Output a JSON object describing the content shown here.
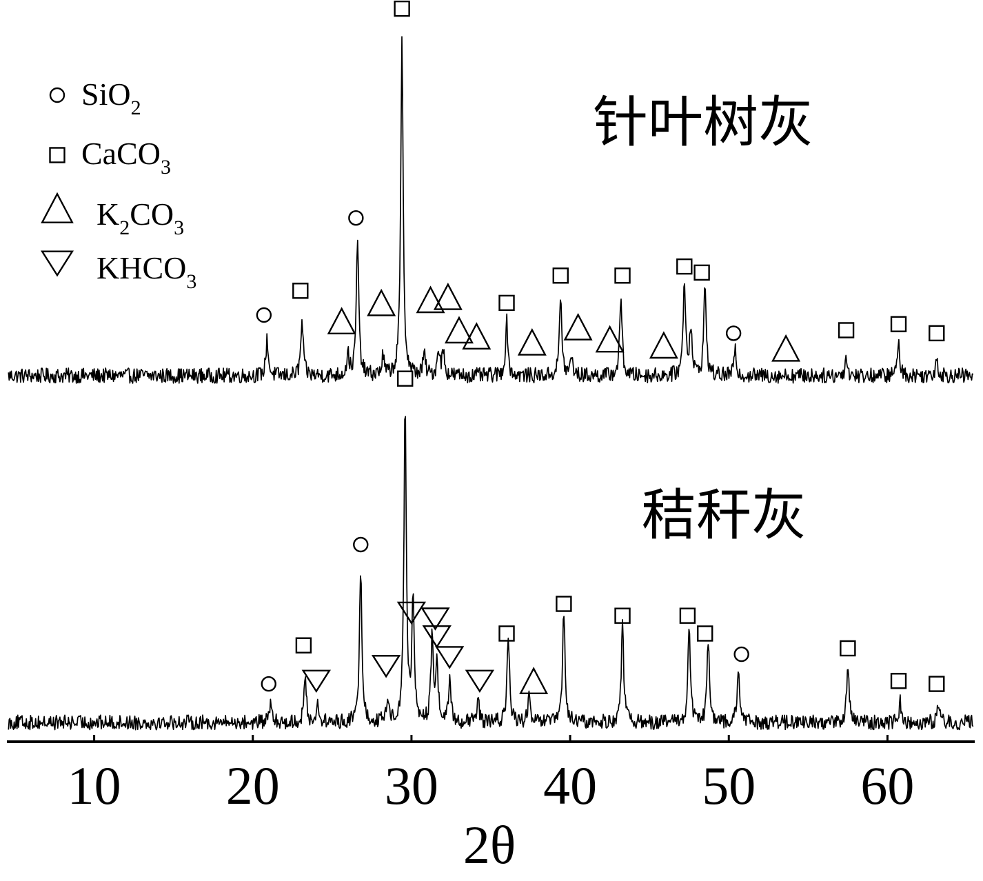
{
  "chart_data": {
    "type": "line",
    "xlabel": "2θ",
    "xlim": [
      4.5,
      65.5
    ],
    "ticks": [
      10,
      20,
      30,
      40,
      50,
      60
    ],
    "legend": [
      {
        "symbol": "circle",
        "parts": [
          {
            "t": "SiO",
            "sub": false
          },
          {
            "t": "2",
            "sub": true
          }
        ]
      },
      {
        "symbol": "square",
        "parts": [
          {
            "t": "CaCO",
            "sub": false
          },
          {
            "t": "3",
            "sub": true
          }
        ]
      },
      {
        "symbol": "triangle-up",
        "parts": [
          {
            "t": "K",
            "sub": false
          },
          {
            "t": "2",
            "sub": true
          },
          {
            "t": "CO",
            "sub": false
          },
          {
            "t": "3",
            "sub": true
          }
        ]
      },
      {
        "symbol": "triangle-down",
        "parts": [
          {
            "t": "KHCO",
            "sub": false
          },
          {
            "t": "3",
            "sub": true
          }
        ]
      }
    ],
    "series": [
      {
        "name": "针叶树灰",
        "label": "针叶树灰",
        "baseline": 0,
        "noise": 2.5,
        "peaks": [
          {
            "x": 20.9,
            "h": 12
          },
          {
            "x": 23.1,
            "h": 18
          },
          {
            "x": 26.0,
            "h": 7
          },
          {
            "x": 26.6,
            "h": 45
          },
          {
            "x": 28.2,
            "h": 6
          },
          {
            "x": 29.4,
            "h": 110
          },
          {
            "x": 30.8,
            "h": 7
          },
          {
            "x": 31.7,
            "h": 9
          },
          {
            "x": 32.0,
            "h": 8
          },
          {
            "x": 36.0,
            "h": 18
          },
          {
            "x": 39.4,
            "h": 26
          },
          {
            "x": 40.1,
            "h": 6
          },
          {
            "x": 43.2,
            "h": 26
          },
          {
            "x": 47.2,
            "h": 32
          },
          {
            "x": 47.6,
            "h": 16
          },
          {
            "x": 48.5,
            "h": 30
          },
          {
            "x": 50.4,
            "h": 8
          },
          {
            "x": 57.4,
            "h": 6
          },
          {
            "x": 60.7,
            "h": 11
          },
          {
            "x": 63.1,
            "h": 6
          }
        ],
        "markers": [
          {
            "x": 20.7,
            "y": 20,
            "symbol": "circle"
          },
          {
            "x": 23.0,
            "y": 28,
            "symbol": "square"
          },
          {
            "x": 25.6,
            "y": 18,
            "symbol": "triangle-up"
          },
          {
            "x": 26.5,
            "y": 52,
            "symbol": "circle"
          },
          {
            "x": 28.1,
            "y": 24,
            "symbol": "triangle-up"
          },
          {
            "x": 29.4,
            "y": 121,
            "symbol": "square"
          },
          {
            "x": 31.2,
            "y": 25,
            "symbol": "triangle-up"
          },
          {
            "x": 32.3,
            "y": 26,
            "symbol": "triangle-up"
          },
          {
            "x": 33.0,
            "y": 15,
            "symbol": "triangle-up"
          },
          {
            "x": 34.1,
            "y": 13,
            "symbol": "triangle-up"
          },
          {
            "x": 36.0,
            "y": 24,
            "symbol": "square"
          },
          {
            "x": 37.6,
            "y": 11,
            "symbol": "triangle-up"
          },
          {
            "x": 39.4,
            "y": 33,
            "symbol": "square"
          },
          {
            "x": 40.5,
            "y": 16,
            "symbol": "triangle-up"
          },
          {
            "x": 42.5,
            "y": 12,
            "symbol": "triangle-up"
          },
          {
            "x": 43.3,
            "y": 33,
            "symbol": "square"
          },
          {
            "x": 45.9,
            "y": 10,
            "symbol": "triangle-up"
          },
          {
            "x": 47.2,
            "y": 36,
            "symbol": "square"
          },
          {
            "x": 48.3,
            "y": 34,
            "symbol": "square"
          },
          {
            "x": 50.3,
            "y": 14,
            "symbol": "circle"
          },
          {
            "x": 53.6,
            "y": 9,
            "symbol": "triangle-up"
          },
          {
            "x": 57.4,
            "y": 15,
            "symbol": "square"
          },
          {
            "x": 60.7,
            "y": 17,
            "symbol": "square"
          },
          {
            "x": 63.1,
            "y": 14,
            "symbol": "square"
          }
        ]
      },
      {
        "name": "秸秆灰",
        "label": "秸秆灰",
        "baseline": 0,
        "noise": 2.5,
        "peaks": [
          {
            "x": 21.1,
            "h": 6
          },
          {
            "x": 23.3,
            "h": 15
          },
          {
            "x": 24.1,
            "h": 6
          },
          {
            "x": 26.8,
            "h": 53
          },
          {
            "x": 28.5,
            "h": 8
          },
          {
            "x": 29.6,
            "h": 106
          },
          {
            "x": 30.1,
            "h": 40
          },
          {
            "x": 31.3,
            "h": 28
          },
          {
            "x": 31.6,
            "h": 20
          },
          {
            "x": 32.4,
            "h": 14
          },
          {
            "x": 34.2,
            "h": 7
          },
          {
            "x": 36.1,
            "h": 30
          },
          {
            "x": 37.4,
            "h": 8
          },
          {
            "x": 39.6,
            "h": 38
          },
          {
            "x": 43.3,
            "h": 33
          },
          {
            "x": 47.5,
            "h": 33
          },
          {
            "x": 48.7,
            "h": 27
          },
          {
            "x": 50.6,
            "h": 18
          },
          {
            "x": 57.5,
            "h": 19
          },
          {
            "x": 60.8,
            "h": 7
          },
          {
            "x": 63.2,
            "h": 6
          }
        ],
        "markers": [
          {
            "x": 21.0,
            "y": 13,
            "symbol": "circle"
          },
          {
            "x": 23.2,
            "y": 26,
            "symbol": "square"
          },
          {
            "x": 24.0,
            "y": 14,
            "symbol": "triangle-down"
          },
          {
            "x": 26.8,
            "y": 60,
            "symbol": "circle"
          },
          {
            "x": 28.4,
            "y": 19,
            "symbol": "triangle-down"
          },
          {
            "x": 29.6,
            "y": 116,
            "symbol": "square"
          },
          {
            "x": 30.0,
            "y": 37,
            "symbol": "triangle-down"
          },
          {
            "x": 31.5,
            "y": 35,
            "symbol": "triangle-down"
          },
          {
            "x": 31.6,
            "y": 29,
            "symbol": "triangle-down"
          },
          {
            "x": 32.4,
            "y": 22,
            "symbol": "triangle-down"
          },
          {
            "x": 34.3,
            "y": 14,
            "symbol": "triangle-down"
          },
          {
            "x": 36.0,
            "y": 30,
            "symbol": "square"
          },
          {
            "x": 37.7,
            "y": 14,
            "symbol": "triangle-up"
          },
          {
            "x": 39.6,
            "y": 40,
            "symbol": "square"
          },
          {
            "x": 43.3,
            "y": 36,
            "symbol": "square"
          },
          {
            "x": 47.4,
            "y": 36,
            "symbol": "square"
          },
          {
            "x": 48.5,
            "y": 30,
            "symbol": "square"
          },
          {
            "x": 50.8,
            "y": 23,
            "symbol": "circle"
          },
          {
            "x": 57.5,
            "y": 25,
            "symbol": "square"
          },
          {
            "x": 60.7,
            "y": 14,
            "symbol": "square"
          },
          {
            "x": 63.1,
            "y": 13,
            "symbol": "square"
          }
        ]
      }
    ]
  }
}
